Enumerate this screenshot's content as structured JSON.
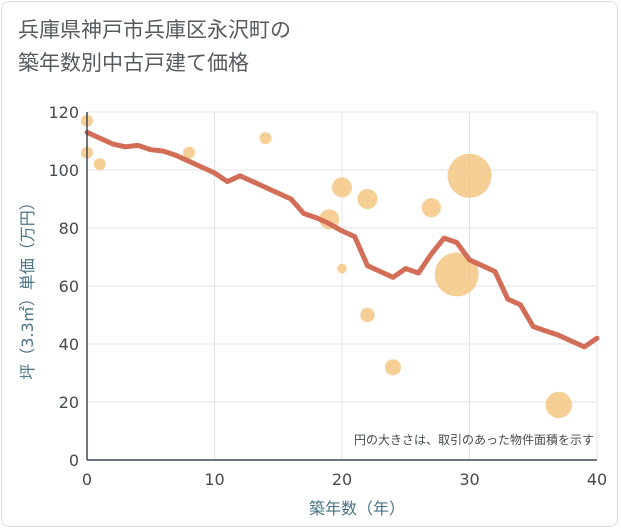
{
  "title_lines": [
    "兵庫県神戸市兵庫区永沢町の",
    "築年数別中古戸建て価格"
  ],
  "chart_data": {
    "type": "scatter",
    "xlabel": "築年数（年）",
    "ylabel": "坪（3.3㎡）単価（万円）",
    "xlim": [
      0,
      40
    ],
    "ylim": [
      0,
      120
    ],
    "xticks": [
      0,
      10,
      20,
      30,
      40
    ],
    "yticks": [
      0,
      20,
      40,
      60,
      80,
      100,
      120
    ],
    "grid": true,
    "note": "円の大きさは、取引のあった物件面積を示す",
    "colors": {
      "bubble": "#f3c27a",
      "line": "#d26d58",
      "grid": "#dfe3e6"
    },
    "bubbles": [
      {
        "x": 0,
        "y": 117,
        "size": 1.5
      },
      {
        "x": 0,
        "y": 106,
        "size": 1.5
      },
      {
        "x": 1,
        "y": 102,
        "size": 1.5
      },
      {
        "x": 8,
        "y": 106,
        "size": 1.5
      },
      {
        "x": 14,
        "y": 111,
        "size": 1.5
      },
      {
        "x": 19,
        "y": 83,
        "size": 2.5
      },
      {
        "x": 20,
        "y": 94,
        "size": 2.5
      },
      {
        "x": 20,
        "y": 66,
        "size": 1.2
      },
      {
        "x": 22,
        "y": 90,
        "size": 2.5
      },
      {
        "x": 22,
        "y": 50,
        "size": 1.8
      },
      {
        "x": 24,
        "y": 32,
        "size": 2.0
      },
      {
        "x": 27,
        "y": 87,
        "size": 2.4
      },
      {
        "x": 29,
        "y": 64,
        "size": 5.5
      },
      {
        "x": 30,
        "y": 98,
        "size": 5.5
      },
      {
        "x": 37,
        "y": 19,
        "size": 3.3
      }
    ],
    "trend": {
      "x": [
        0,
        1,
        2,
        3,
        4,
        5,
        6,
        7,
        8,
        9,
        10,
        11,
        12,
        13,
        14,
        15,
        16,
        17,
        18,
        19,
        20,
        21,
        22,
        23,
        24,
        25,
        26,
        27,
        28,
        29,
        30,
        31,
        32,
        33,
        34,
        35,
        36,
        37,
        38,
        39,
        40
      ],
      "y": [
        113,
        111,
        109,
        108,
        108.5,
        107,
        106.5,
        105,
        103,
        101,
        99,
        96,
        98,
        96,
        94,
        92,
        90,
        85,
        83.5,
        81.5,
        79,
        77,
        67,
        65,
        63,
        66,
        64.5,
        71,
        76.5,
        75,
        69,
        67,
        65,
        55.5,
        53.5,
        46,
        44.5,
        43,
        41,
        39,
        42
      ]
    }
  }
}
